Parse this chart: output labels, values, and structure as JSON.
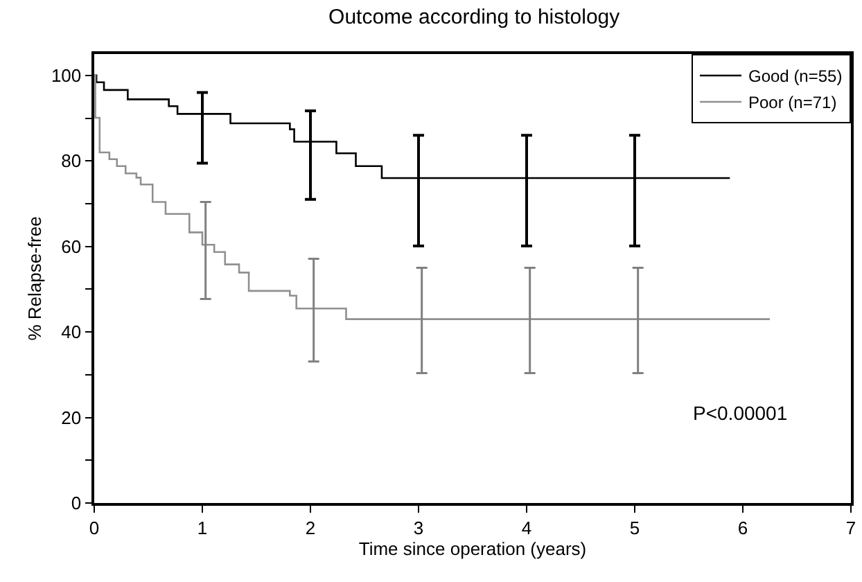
{
  "chart_data": {
    "type": "step",
    "title": "Outcome according to histology",
    "xlabel": "Time since operation (years)",
    "ylabel": "% Relapse-free",
    "series": [
      {
        "name": "Good (n=55)",
        "color": "#000000",
        "x": [
          0,
          0.02,
          0.09,
          0.31,
          0.69,
          0.77,
          1,
          1.26,
          1.81,
          1.85,
          2,
          2.24,
          2.42,
          2.66,
          3,
          4,
          5,
          5.88
        ],
        "values": [
          100,
          98.4,
          96.6,
          94.4,
          92.8,
          91.0,
          91.0,
          88.8,
          87.4,
          84.5,
          84.5,
          81.8,
          78.8,
          76.0,
          76.0,
          76.0,
          76.0,
          76.0
        ],
        "errors": [
          null,
          null,
          null,
          null,
          null,
          null,
          [
            79.5,
            96.0
          ],
          null,
          null,
          null,
          [
            71.0,
            91.7
          ],
          null,
          null,
          null,
          [
            60.1,
            86.0
          ],
          [
            60.1,
            86.0
          ],
          [
            60.1,
            86.0
          ],
          null
        ]
      },
      {
        "name": "Poor (n=71)",
        "color": "#909090",
        "x": [
          0,
          0.01,
          0.05,
          0.14,
          0.21,
          0.29,
          0.39,
          0.43,
          0.54,
          0.66,
          0.88,
          1.0,
          1.03,
          1.11,
          1.21,
          1.34,
          1.43,
          1.81,
          1.87,
          2.03,
          2.33,
          3.03,
          4.03,
          5.03,
          6.25
        ],
        "values": [
          100,
          90.1,
          82.0,
          80.4,
          78.8,
          77.1,
          76.1,
          74.5,
          70.4,
          67.6,
          63.3,
          60.4,
          60.4,
          58.7,
          55.8,
          53.9,
          49.6,
          48.5,
          45.5,
          45.5,
          43.0,
          43.0,
          43.0,
          43.0,
          43.0
        ],
        "errors": [
          null,
          null,
          null,
          null,
          null,
          null,
          null,
          null,
          null,
          null,
          null,
          null,
          [
            47.7,
            70.4
          ],
          null,
          null,
          null,
          null,
          null,
          null,
          [
            33.1,
            57.1
          ],
          null,
          [
            30.4,
            55.0
          ],
          [
            30.4,
            55.0
          ],
          [
            30.4,
            55.0
          ],
          null
        ]
      }
    ],
    "xlim": [
      0,
      7
    ],
    "xticks": [
      0,
      1,
      2,
      3,
      4,
      5,
      6,
      7
    ],
    "ylim": [
      0,
      105
    ],
    "yticks": [
      0,
      {
        "value": 10,
        "label": null
      },
      20,
      {
        "value": 30,
        "label": null
      },
      40,
      {
        "value": 50,
        "label": null
      },
      60,
      {
        "value": 70,
        "label": null
      },
      80,
      {
        "value": 90,
        "label": null
      },
      100
    ],
    "legend": "top right",
    "annotations": [
      "P<0.00001"
    ]
  }
}
